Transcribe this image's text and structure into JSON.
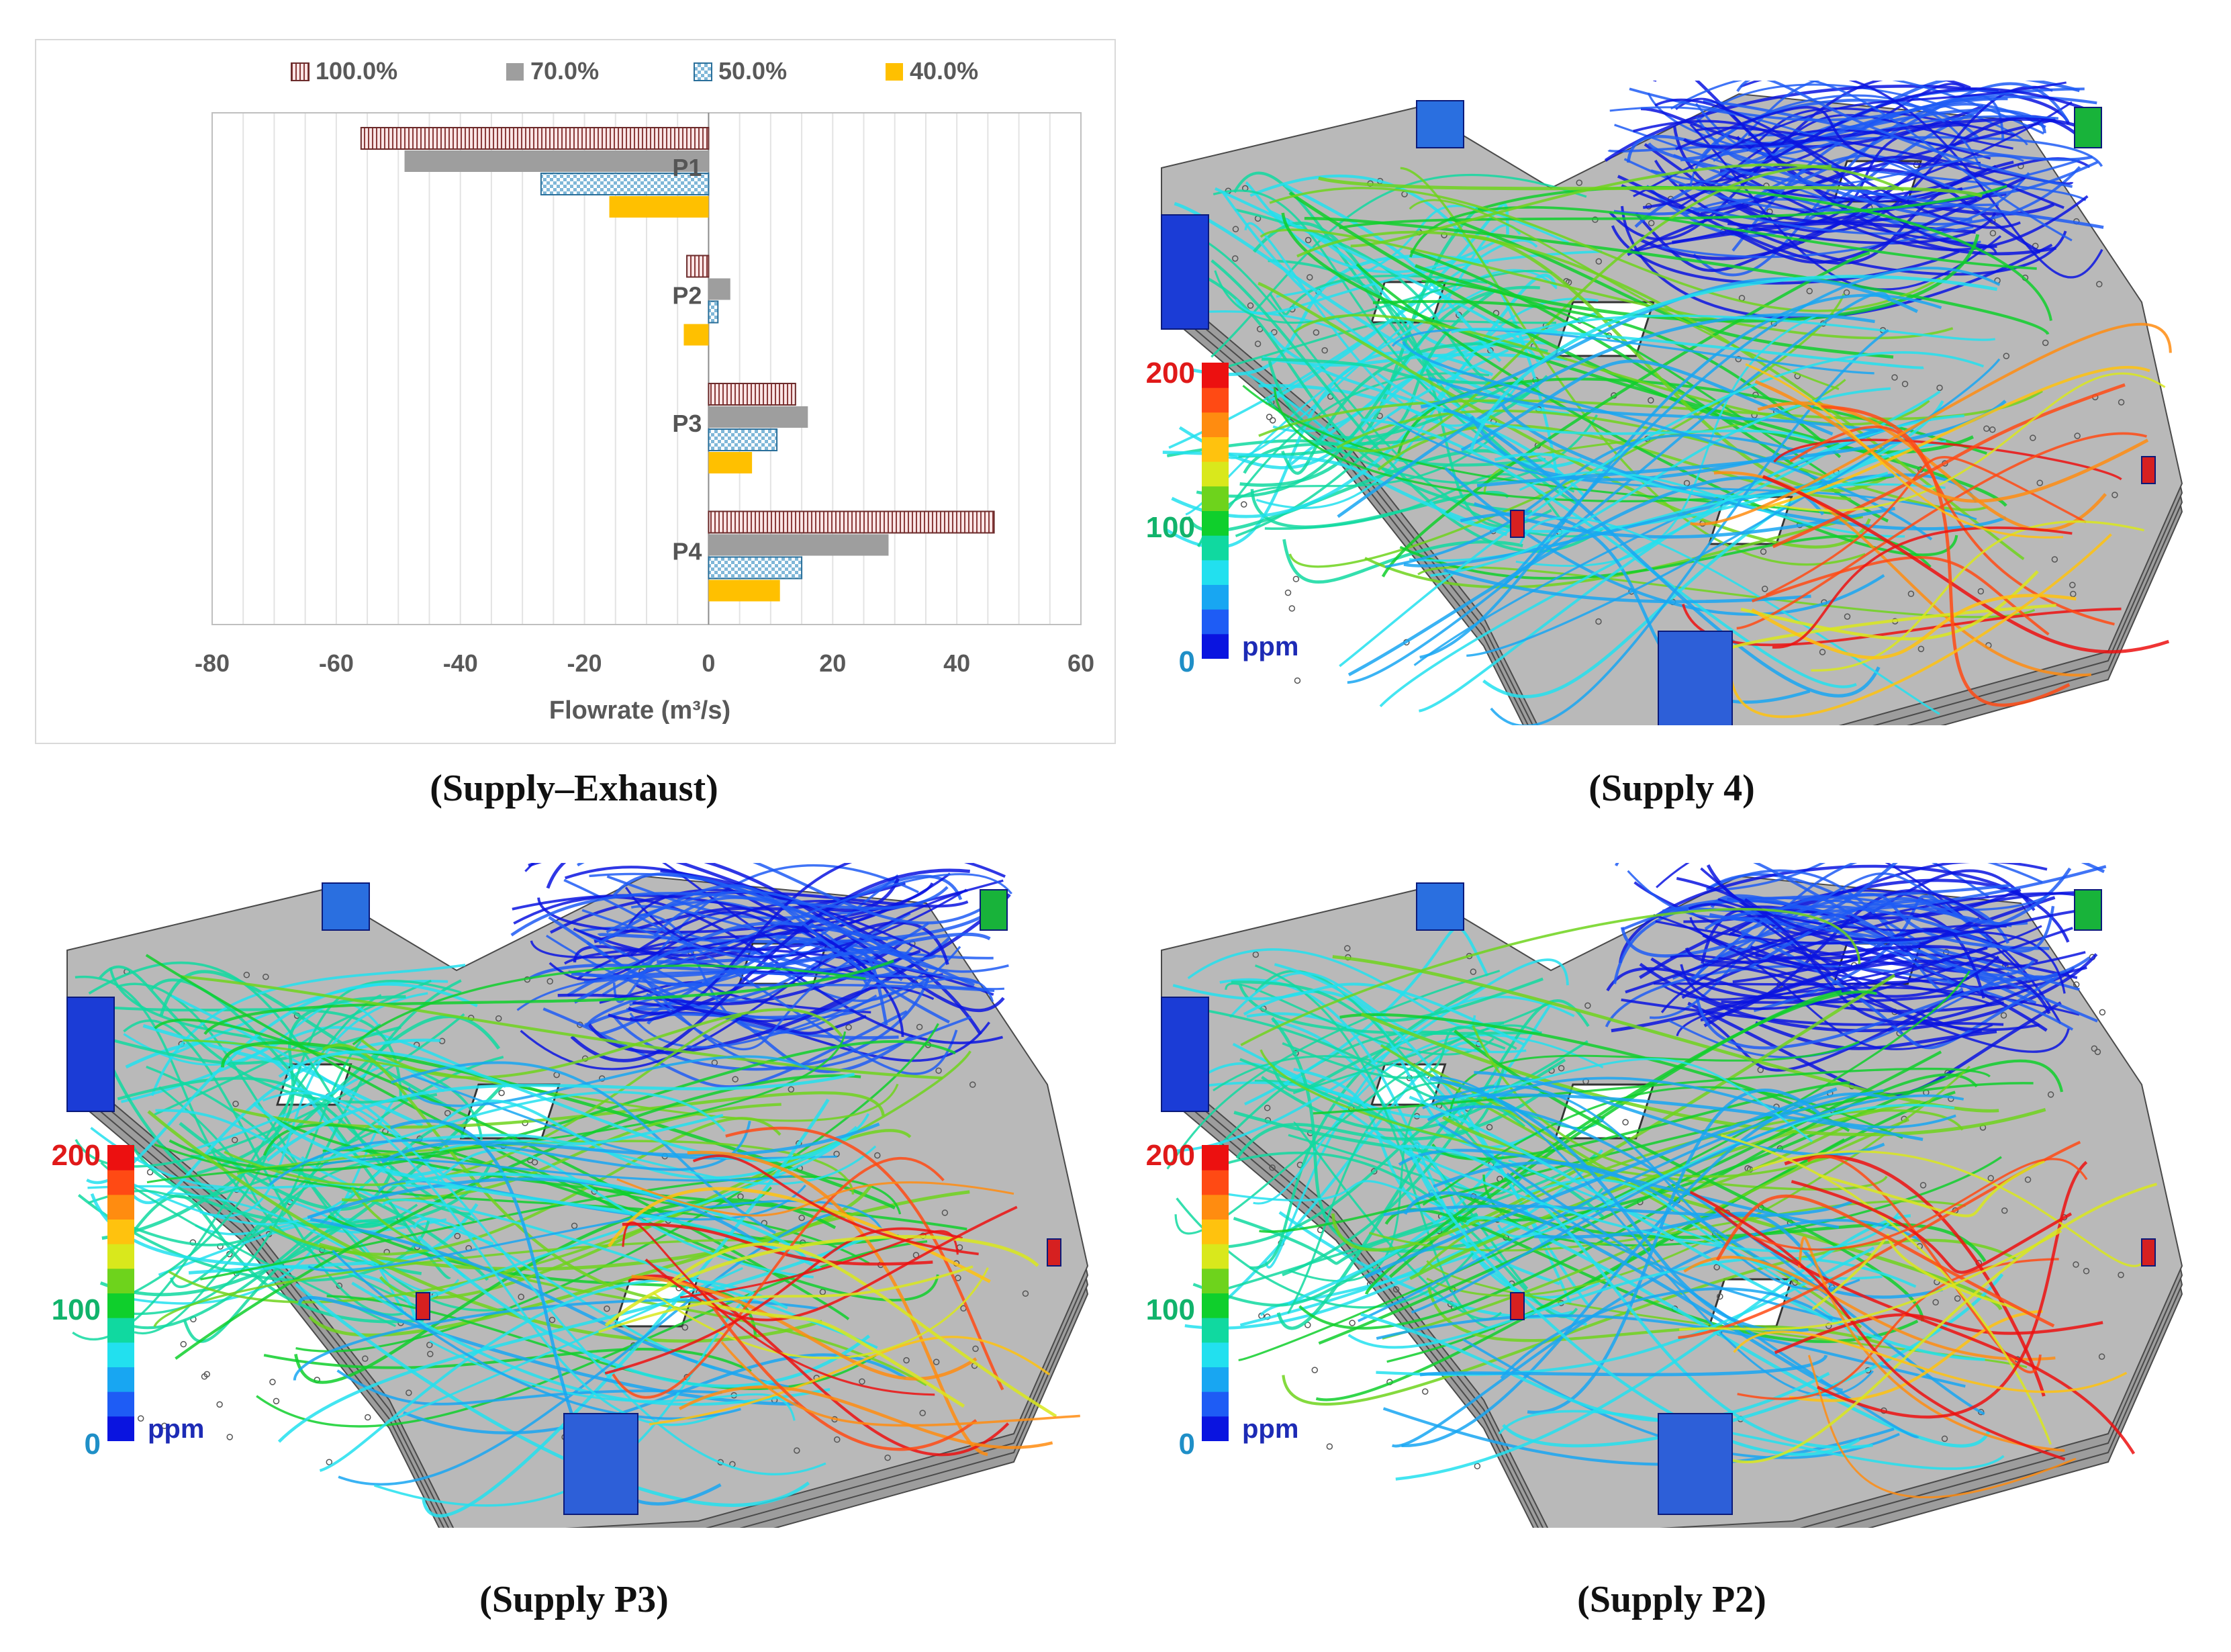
{
  "chart_data": {
    "type": "bar",
    "orientation": "horizontal",
    "categories": [
      "P1",
      "P2",
      "P3",
      "P4"
    ],
    "series": [
      {
        "name": "100.0%",
        "values": [
          -56,
          -3.5,
          14,
          46
        ],
        "fill": "#fbe6e6",
        "pattern": "vertical-stripes"
      },
      {
        "name": "70.0%",
        "values": [
          -49,
          3.5,
          16,
          29
        ],
        "fill": "#9e9e9e",
        "pattern": "solid"
      },
      {
        "name": "50.0%",
        "values": [
          -27,
          1.5,
          11,
          15
        ],
        "fill": "#dbeef7",
        "pattern": "checker"
      },
      {
        "name": "40.0%",
        "values": [
          -16,
          -4,
          7,
          11.5
        ],
        "fill": "#ffc000",
        "pattern": "solid"
      }
    ],
    "xlabel": "Flowrate (m³/s)",
    "xlim": [
      -80,
      60
    ],
    "xticks": [
      -80,
      -60,
      -40,
      -20,
      0,
      20,
      40,
      60
    ],
    "gridlines": "vertical",
    "legend": "top"
  },
  "captions": {
    "top_left": "(Supply–Exhaust)",
    "top_right": "(Supply 4)",
    "bottom_left": "(Supply P3)",
    "bottom_right": "(Supply P2)"
  },
  "colorbar": {
    "max_label": "200",
    "mid_label": "100",
    "min_label": "0",
    "unit": "ppm",
    "colors": [
      "#0a14e0",
      "#1e5cf5",
      "#18a6f2",
      "#22e0ef",
      "#10d9a0",
      "#0fcf2c",
      "#6ed31c",
      "#d9e81c",
      "#ffc20e",
      "#ff8c10",
      "#ff4a14",
      "#ec1010"
    ],
    "label_colors": {
      "max": "#e01919",
      "mid": "#11b36b",
      "min": "#1f8fc7",
      "unit": "#1d2bb5"
    }
  }
}
